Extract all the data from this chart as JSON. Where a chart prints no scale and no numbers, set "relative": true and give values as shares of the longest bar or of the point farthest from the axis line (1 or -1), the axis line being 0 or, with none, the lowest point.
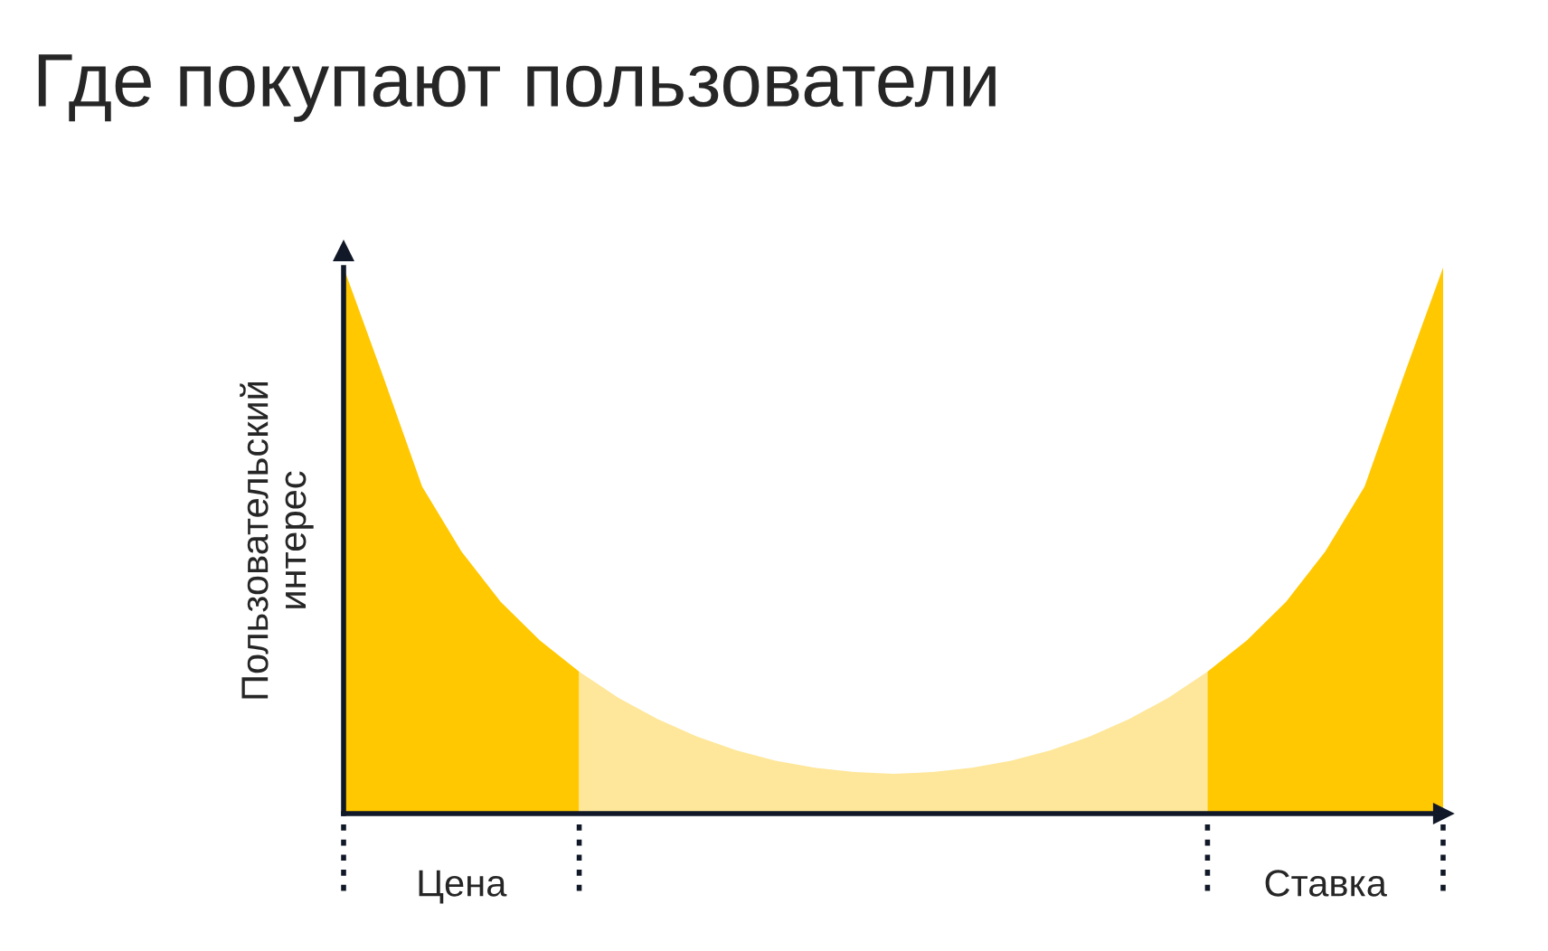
{
  "chart_data": {
    "type": "area",
    "title": "Где покупают пользователи",
    "ylabel": "Пользовательский\nинтерес",
    "relative": true,
    "categories": [
      null,
      null,
      null,
      "Цена",
      null,
      null,
      null,
      null,
      null,
      null,
      null,
      null,
      null,
      null,
      null,
      null,
      null,
      null,
      null,
      null,
      null,
      null,
      null,
      null,
      null,
      "Ставка",
      null,
      null,
      null
    ],
    "series": [
      {
        "color": "#ffc800",
        "values": [
          1,
          0.802,
          0.599,
          0.48,
          0.388,
          0.317,
          0.26,
          null,
          null,
          null,
          null,
          null,
          null,
          null,
          null,
          null,
          null,
          null,
          null,
          null,
          null,
          null,
          null,
          null,
          null,
          null,
          null,
          null,
          null
        ]
      },
      {
        "color": "#fee79a",
        "values": [
          null,
          null,
          null,
          null,
          null,
          null,
          0.26,
          0.212,
          0.173,
          0.141,
          0.116,
          0.097,
          0.084,
          0.076,
          0.073,
          0.076,
          0.084,
          0.097,
          0.116,
          0.141,
          0.173,
          0.212,
          0.26,
          null,
          null,
          null,
          null,
          null,
          null
        ]
      },
      {
        "color": "#ffc800",
        "values": [
          null,
          null,
          null,
          null,
          null,
          null,
          null,
          null,
          null,
          null,
          null,
          null,
          null,
          null,
          null,
          null,
          null,
          null,
          null,
          null,
          null,
          null,
          0.26,
          0.317,
          0.388,
          0.48,
          0.599,
          0.802,
          1
        ]
      }
    ]
  }
}
